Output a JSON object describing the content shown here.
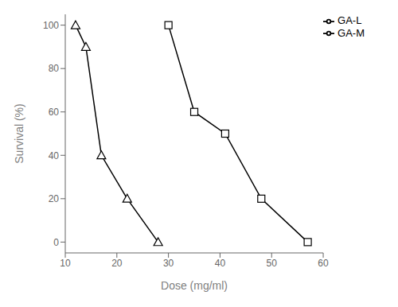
{
  "chart_data": {
    "type": "line",
    "xlabel": "Dose (mg/ml)",
    "ylabel": "Survival (%)",
    "series": [
      {
        "name": "GA-M",
        "color": "#000000",
        "marker": "square",
        "x": [
          30,
          35,
          41,
          48,
          57
        ],
        "values": [
          100,
          60,
          50,
          20,
          0
        ]
      },
      {
        "name": "GA-L",
        "color": "#000000",
        "marker": "triangle",
        "x": [
          12,
          14,
          17,
          22,
          28
        ],
        "values": [
          100,
          90,
          40,
          20,
          0
        ]
      }
    ],
    "xlim": [
      10,
      60
    ],
    "ylim": [
      -5,
      105
    ],
    "xticks": [
      10,
      20,
      30,
      40,
      50,
      60
    ],
    "yticks": [
      0,
      20,
      40,
      60,
      80,
      100
    ],
    "grid": false,
    "legend": "upper right"
  }
}
